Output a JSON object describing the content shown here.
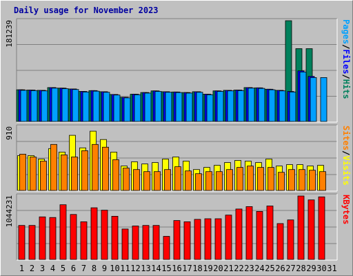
{
  "chart_data": {
    "type": "bar",
    "title": "Daily usage for November 2023",
    "categories": [
      "1",
      "2",
      "3",
      "4",
      "5",
      "6",
      "7",
      "8",
      "9",
      "10",
      "11",
      "12",
      "13",
      "14",
      "15",
      "16",
      "17",
      "18",
      "19",
      "20",
      "21",
      "22",
      "23",
      "24",
      "25",
      "26",
      "27",
      "28",
      "29",
      "30",
      "31"
    ],
    "weekend_categories": [
      "4",
      "5",
      "11",
      "12",
      "18",
      "19",
      "25",
      "26"
    ],
    "panels": [
      {
        "id": "hits",
        "ymax_label": "181239",
        "ylim": [
          0,
          181239
        ],
        "labels": [
          {
            "text": "Pages",
            "color": "#00a0ff"
          },
          {
            "text": "Files",
            "color": "#0000ff"
          },
          {
            "text": "Hits",
            "color": "#00805c"
          }
        ],
        "series": [
          {
            "name": "Hits",
            "color": "#00805c",
            "values": [
              57000,
              56500,
              56000,
              61000,
              60000,
              58500,
              54000,
              55500,
              53500,
              48500,
              43500,
              49000,
              52000,
              55000,
              53500,
              53000,
              52000,
              53500,
              49000,
              55000,
              56000,
              56500,
              61000,
              60500,
              58000,
              56000,
              181239,
              131000,
              131000,
              null,
              null
            ]
          },
          {
            "name": "Files",
            "color": "#0000ff",
            "values": [
              57000,
              56500,
              56000,
              61000,
              60000,
              58500,
              54000,
              55500,
              53500,
              48500,
              43500,
              49000,
              52000,
              55000,
              53500,
              53000,
              52000,
              53500,
              49000,
              55000,
              56000,
              56500,
              61000,
              60500,
              58000,
              56000,
              54000,
              91000,
              81000,
              null,
              null
            ]
          },
          {
            "name": "Pages",
            "color": "#00a0ff",
            "values": [
              56000,
              55500,
              55000,
              60000,
              59000,
              57500,
              53000,
              54500,
              52500,
              47500,
              42500,
              48000,
              51000,
              54000,
              52500,
              52000,
              51000,
              52500,
              48000,
              54000,
              55000,
              55500,
              60000,
              59500,
              57000,
              55000,
              53000,
              89000,
              79000,
              79000,
              null
            ]
          }
        ]
      },
      {
        "id": "visits",
        "ymax_label": "910",
        "ylim": [
          0,
          910
        ],
        "labels": [
          {
            "text": "Sites",
            "color": "#ff8000"
          },
          {
            "text": "Visits",
            "color": "#ffff00"
          }
        ],
        "series": [
          {
            "name": "Visits",
            "color": "#ffff00",
            "values": [
              500,
              500,
              450,
              600,
              550,
              790,
              610,
              850,
              730,
              550,
              350,
              410,
              380,
              400,
              450,
              480,
              420,
              300,
              330,
              360,
              400,
              430,
              420,
              400,
              450,
              350,
              370,
              370,
              350,
              360,
              null
            ]
          },
          {
            "name": "Sites",
            "color": "#ff8000",
            "values": [
              520,
              480,
              420,
              660,
              510,
              480,
              570,
              660,
              620,
              440,
              320,
              300,
              270,
              270,
              300,
              340,
              280,
              240,
              270,
              270,
              300,
              330,
              350,
              330,
              330,
              260,
              300,
              300,
              290,
              270,
              null
            ]
          }
        ]
      },
      {
        "id": "kbytes",
        "ymax_label": "1044231",
        "ylim": [
          0,
          1044231
        ],
        "labels": [
          {
            "text": "KBytes",
            "color": "#ff0000"
          }
        ],
        "series": [
          {
            "name": "KBytes",
            "color": "#ff0000",
            "values": [
              560000,
              560000,
              700000,
              690000,
              900000,
              740000,
              620000,
              850000,
              810000,
              710000,
              500000,
              550000,
              560000,
              560000,
              380000,
              640000,
              620000,
              660000,
              670000,
              670000,
              730000,
              830000,
              870000,
              790000,
              880000,
              590000,
              650000,
              1044231,
              980000,
              1030000,
              null
            ]
          }
        ]
      }
    ]
  }
}
